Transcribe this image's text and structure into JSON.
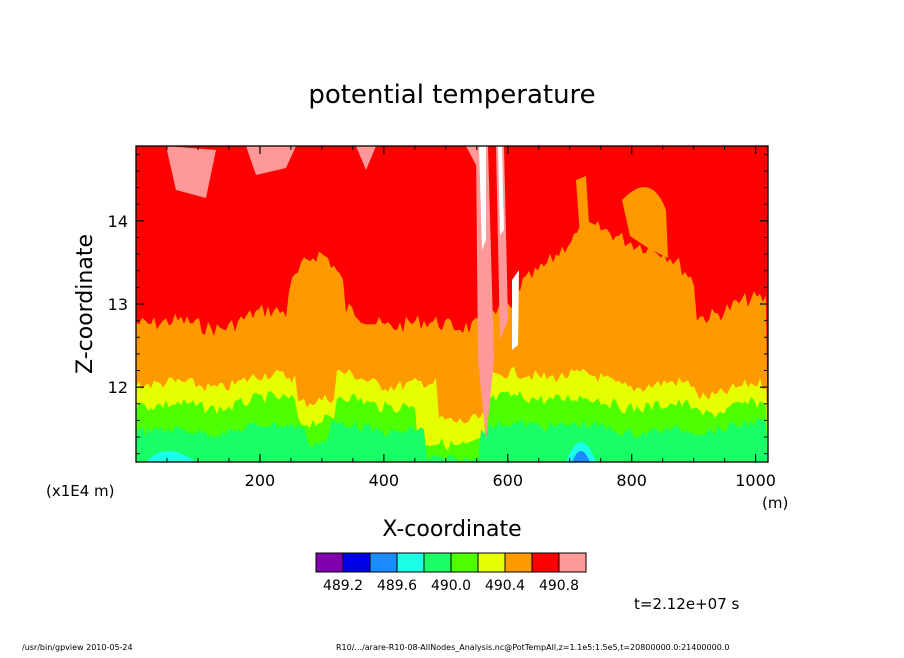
{
  "chart_data": {
    "type": "heatmap",
    "title": "potential temperature",
    "xlabel": "X-coordinate",
    "ylabel": "Z-coordinate",
    "x_unit": "(m)",
    "y_unit": "(x1E4 m)",
    "xlim": [
      0,
      1020
    ],
    "ylim": [
      11.1,
      14.9
    ],
    "x_ticks": [
      200,
      400,
      600,
      800,
      1000
    ],
    "y_ticks": [
      12,
      13,
      14
    ],
    "colorbar": {
      "colors": [
        "#8000b0",
        "#0000e6",
        "#1a8cff",
        "#1affe6",
        "#1aff66",
        "#4dff00",
        "#e6ff00",
        "#ff9900",
        "#ff0000",
        "#ff9999"
      ],
      "tick_labels": [
        "489.2",
        "489.6",
        "490.0",
        "490.4",
        "490.8"
      ]
    },
    "time_label": "t=2.12e+07 s",
    "footer_left": "/usr/bin/gpview  2010-05-24",
    "footer_right": "R10/.../arare-R10-08-AllNodes_Analysis.nc@PotTempAll,z=1.1e5:1.5e5,t=20800000.0:21400000.0"
  }
}
